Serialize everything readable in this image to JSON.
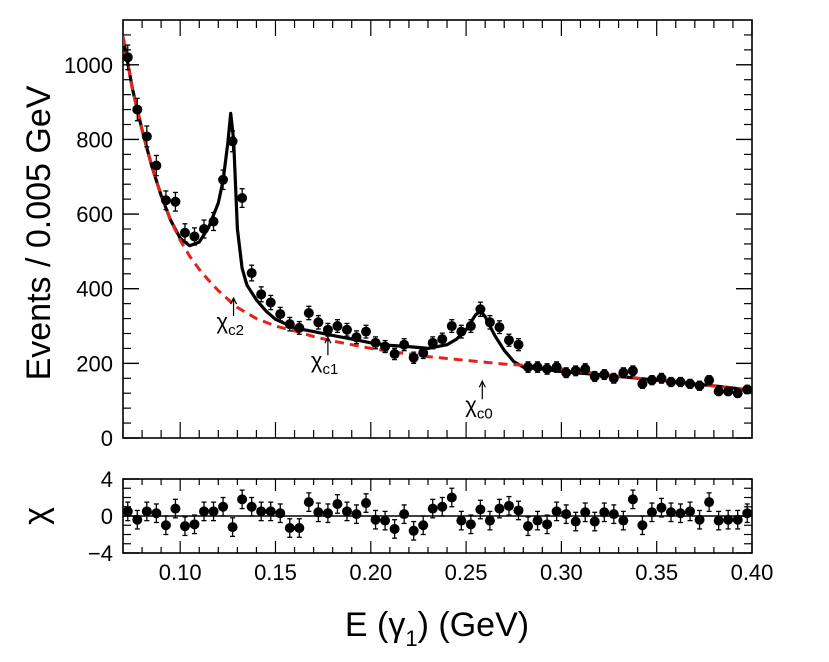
{
  "chart_data": [
    {
      "type": "scatter",
      "panel": "main",
      "title": "",
      "xlabel": "",
      "ylabel": "Events / 0.005 GeV",
      "xlim": [
        0.07,
        0.4
      ],
      "ylim": [
        0,
        1120
      ],
      "y_ticks": [
        0,
        200,
        400,
        600,
        800,
        1000
      ],
      "y_tick_labels": [
        "0",
        "200",
        "400",
        "600",
        "800",
        "1000"
      ],
      "series": [
        {
          "name": "data",
          "x": [
            0.0725,
            0.0775,
            0.0825,
            0.0875,
            0.0925,
            0.0975,
            0.1025,
            0.1075,
            0.1125,
            0.1175,
            0.1225,
            0.1275,
            0.1325,
            0.1375,
            0.1425,
            0.1475,
            0.1525,
            0.1575,
            0.1625,
            0.1675,
            0.1725,
            0.1775,
            0.1825,
            0.1875,
            0.1925,
            0.1975,
            0.2025,
            0.2075,
            0.2125,
            0.2175,
            0.2225,
            0.2275,
            0.2325,
            0.2375,
            0.2425,
            0.2475,
            0.2525,
            0.2575,
            0.2625,
            0.2675,
            0.2725,
            0.2775,
            0.2825,
            0.2875,
            0.2925,
            0.2975,
            0.3025,
            0.3075,
            0.3125,
            0.3175,
            0.3225,
            0.3275,
            0.3325,
            0.3375,
            0.3425,
            0.3475,
            0.3525,
            0.3575,
            0.3625,
            0.3675,
            0.3725,
            0.3775,
            0.3825,
            0.3875,
            0.3925,
            0.3975
          ],
          "y": [
            1020,
            880,
            808,
            730,
            637,
            633,
            550,
            540,
            560,
            580,
            692,
            795,
            643,
            442,
            385,
            363,
            332,
            305,
            295,
            335,
            310,
            290,
            300,
            290,
            270,
            285,
            255,
            245,
            225,
            250,
            215,
            228,
            255,
            265,
            300,
            285,
            300,
            345,
            310,
            297,
            262,
            250,
            190,
            190,
            185,
            190,
            175,
            180,
            185,
            165,
            170,
            160,
            175,
            180,
            145,
            155,
            160,
            150,
            150,
            145,
            140,
            155,
            125,
            125,
            120,
            130
          ],
          "yerr": [
            33,
            30,
            28,
            27,
            25,
            25,
            24,
            23,
            24,
            24,
            26,
            28,
            25,
            21,
            20,
            19,
            18,
            18,
            17,
            18,
            18,
            17,
            17,
            17,
            17,
            17,
            16,
            16,
            15,
            16,
            15,
            15,
            16,
            16,
            17,
            17,
            17,
            19,
            18,
            17,
            16,
            16,
            14,
            14,
            14,
            14,
            13,
            13,
            14,
            13,
            13,
            13,
            13,
            13,
            12,
            12,
            13,
            12,
            12,
            12,
            12,
            12,
            11,
            11,
            11,
            11
          ]
        },
        {
          "name": "total fit",
          "type": "line",
          "color": "#000000",
          "x": [
            0.07,
            0.075,
            0.08,
            0.085,
            0.09,
            0.095,
            0.1,
            0.105,
            0.11,
            0.115,
            0.12,
            0.1225,
            0.125,
            0.1265,
            0.128,
            0.13,
            0.1325,
            0.135,
            0.14,
            0.145,
            0.15,
            0.16,
            0.17,
            0.18,
            0.19,
            0.2,
            0.21,
            0.22,
            0.23,
            0.24,
            0.245,
            0.25,
            0.255,
            0.2575,
            0.26,
            0.265,
            0.27,
            0.275,
            0.28,
            0.29,
            0.3,
            0.32,
            0.34,
            0.36,
            0.38,
            0.4
          ],
          "y": [
            1075,
            935,
            825,
            730,
            650,
            583,
            535,
            515,
            525,
            565,
            630,
            690,
            790,
            870,
            800,
            560,
            455,
            410,
            370,
            340,
            318,
            295,
            285,
            275,
            265,
            255,
            248,
            245,
            240,
            250,
            265,
            290,
            330,
            340,
            325,
            275,
            235,
            205,
            190,
            185,
            178,
            170,
            160,
            150,
            140,
            128
          ]
        },
        {
          "name": "background",
          "type": "line",
          "style": "dashed",
          "color": "#e4221b",
          "x": [
            0.07,
            0.075,
            0.08,
            0.085,
            0.09,
            0.095,
            0.1,
            0.105,
            0.11,
            0.115,
            0.12,
            0.125,
            0.13,
            0.14,
            0.15,
            0.16,
            0.17,
            0.18,
            0.19,
            0.2,
            0.21,
            0.22,
            0.23,
            0.24,
            0.25,
            0.26,
            0.27,
            0.28,
            0.29,
            0.3,
            0.32,
            0.34,
            0.36,
            0.38,
            0.4
          ],
          "y": [
            1075,
            935,
            825,
            730,
            650,
            583,
            530,
            487,
            452,
            422,
            395,
            372,
            350,
            320,
            300,
            287,
            272,
            260,
            250,
            240,
            232,
            225,
            218,
            213,
            208,
            203,
            198,
            195,
            190,
            185,
            172,
            160,
            150,
            140,
            128
          ]
        }
      ],
      "annotations": [
        {
          "label": "χ",
          "sub": "c2",
          "x": 0.128,
          "arrow_tip_y": 375
        },
        {
          "label": "χ",
          "sub": "c1",
          "x": 0.1775,
          "arrow_tip_y": 270
        },
        {
          "label": "χ",
          "sub": "c0",
          "x": 0.2585,
          "arrow_tip_y": 152
        }
      ]
    },
    {
      "type": "scatter",
      "panel": "residuals",
      "xlabel": "E (γ₁) (GeV)",
      "xlabel_main": "E (",
      "xlabel_gamma": "γ",
      "xlabel_sub": "1",
      "xlabel_tail": ") (GeV)",
      "ylabel": "χ",
      "xlim": [
        0.07,
        0.4
      ],
      "ylim": [
        -4,
        4
      ],
      "y_ticks": [
        -4,
        0,
        4
      ],
      "y_tick_labels": [
        "−4",
        "0",
        "4"
      ],
      "x_ticks": [
        0.1,
        0.15,
        0.2,
        0.25,
        0.3,
        0.35,
        0.4
      ],
      "x_tick_labels": [
        "0.10",
        "0.15",
        "0.20",
        "0.25",
        "0.30",
        "0.35",
        "0.40"
      ],
      "series": [
        {
          "name": "pulls",
          "x": [
            0.0725,
            0.0775,
            0.0825,
            0.0875,
            0.0925,
            0.0975,
            0.1025,
            0.1075,
            0.1125,
            0.1175,
            0.1225,
            0.1275,
            0.1325,
            0.1375,
            0.1425,
            0.1475,
            0.1525,
            0.1575,
            0.1625,
            0.1675,
            0.1725,
            0.1775,
            0.1825,
            0.1875,
            0.1925,
            0.1975,
            0.2025,
            0.2075,
            0.2125,
            0.2175,
            0.2225,
            0.2275,
            0.2325,
            0.2375,
            0.2425,
            0.2475,
            0.2525,
            0.2575,
            0.2625,
            0.2675,
            0.2725,
            0.2775,
            0.2825,
            0.2875,
            0.2925,
            0.2975,
            0.3025,
            0.3075,
            0.3125,
            0.3175,
            0.3225,
            0.3275,
            0.3325,
            0.3375,
            0.3425,
            0.3475,
            0.3525,
            0.3575,
            0.3625,
            0.3675,
            0.3725,
            0.3775,
            0.3825,
            0.3875,
            0.3925,
            0.3975
          ],
          "y": [
            0.5,
            -0.4,
            0.5,
            0.3,
            -1.0,
            0.8,
            -1.1,
            -0.9,
            0.5,
            0.5,
            1.0,
            -1.2,
            1.8,
            1.0,
            0.5,
            0.5,
            0.3,
            -1.3,
            -1.3,
            1.5,
            0.4,
            0.3,
            1.3,
            0.5,
            0.2,
            1.4,
            -0.4,
            -0.5,
            -1.4,
            0.2,
            -1.6,
            -1.0,
            0.8,
            1.0,
            2.0,
            -0.5,
            -0.9,
            0.7,
            -0.5,
            0.8,
            1.1,
            0.6,
            -1.1,
            -0.5,
            -0.9,
            0.5,
            0.2,
            -0.6,
            0.4,
            -0.6,
            0.4,
            0.2,
            -0.5,
            1.8,
            -1.0,
            0.4,
            0.9,
            0.4,
            0.3,
            0.5,
            -0.4,
            1.5,
            -0.5,
            -0.4,
            -0.4,
            0.3
          ],
          "yerr": [
            1,
            1,
            1,
            1,
            1,
            1,
            1,
            1,
            1,
            1,
            1,
            1,
            1,
            1,
            1,
            1,
            1,
            1,
            1,
            1,
            1,
            1,
            1,
            1,
            1,
            1,
            1,
            1,
            1,
            1,
            1,
            1,
            1,
            1,
            1,
            1,
            1,
            1,
            1,
            1,
            1,
            1,
            1,
            1,
            1,
            1,
            1,
            1,
            1,
            1,
            1,
            1,
            1,
            1,
            1,
            1,
            1,
            1,
            1,
            1,
            1,
            1,
            1,
            1,
            1,
            1
          ]
        }
      ]
    }
  ]
}
